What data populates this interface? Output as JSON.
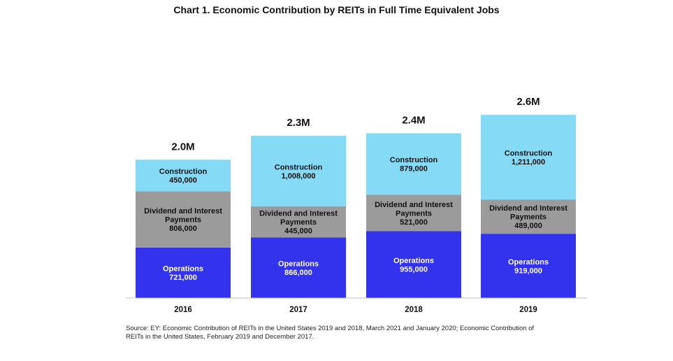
{
  "chart_data": {
    "type": "bar",
    "stacked": true,
    "title": "Chart 1. Economic Contribution by REITs in Full Time Equivalent Jobs",
    "xlabel": "",
    "ylabel": "",
    "categories": [
      "2016",
      "2017",
      "2018",
      "2019"
    ],
    "totals": [
      "2.0M",
      "2.3M",
      "2.4M",
      "2.6M"
    ],
    "series": [
      {
        "name": "Operations",
        "color": "#3333ee",
        "values": [
          721000,
          866000,
          955000,
          919000
        ],
        "labels": [
          "721,000",
          "866,000",
          "955,000",
          "919,000"
        ]
      },
      {
        "name": "Dividend and Interest Payments",
        "color": "#9b9b9b",
        "values": [
          806000,
          445000,
          521000,
          489000
        ],
        "labels": [
          "806,000",
          "445,000",
          "521,000",
          "489,000"
        ]
      },
      {
        "name": "Construction",
        "color": "#85daf5",
        "values": [
          450000,
          1008000,
          879000,
          1211000
        ],
        "labels": [
          "450,000",
          "1,008,000",
          "879,000",
          "1,211,000"
        ]
      }
    ],
    "grid": false,
    "legend": "none"
  },
  "source": "Source: EY: Economic Contribution of REITs in the United States 2019 and 2018, March 2021 and January 2020; Economic Contribution of REITs in the United States, February 2019 and December 2017."
}
